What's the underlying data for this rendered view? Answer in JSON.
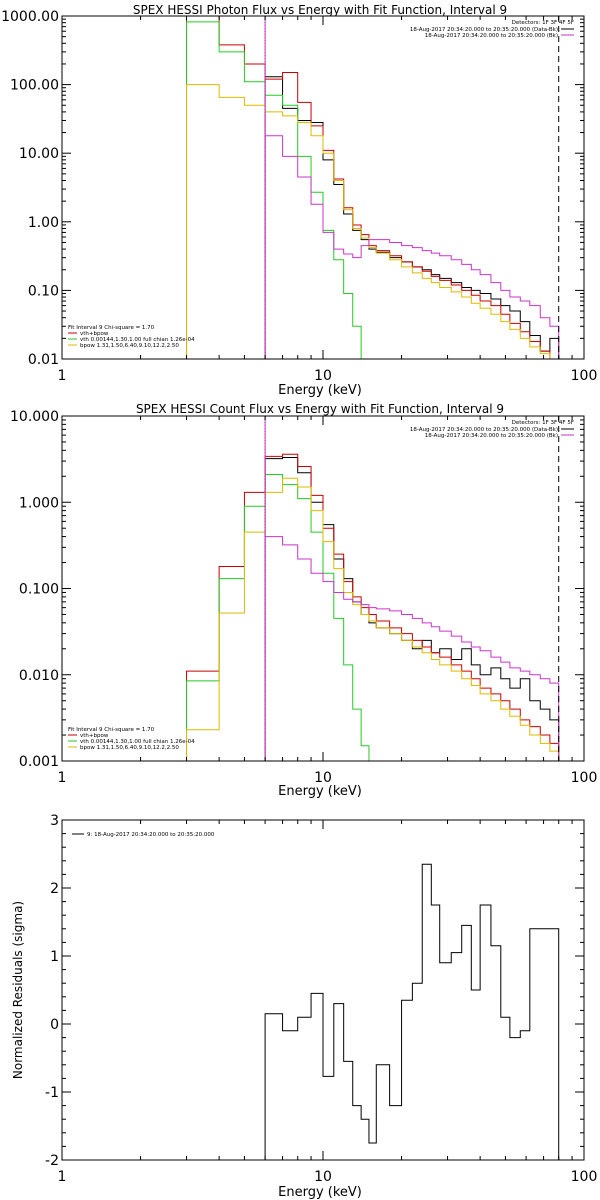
{
  "colors": {
    "data": "#000000",
    "total": "#cc0000",
    "vth": "#22cc22",
    "bpow": "#ddbb00",
    "background": "#cc33cc",
    "axes": "#000000"
  },
  "chart_data": [
    {
      "type": "line",
      "title": "SPEX HESSI Photon Flux vs Energy with Fit Function, Interval 9",
      "xlabel": "Energy (keV)",
      "ylabel": "",
      "xscale": "log",
      "yscale": "log",
      "xlim": [
        1,
        100
      ],
      "ylim": [
        0.01,
        1000
      ],
      "xticks": [
        1,
        10,
        100
      ],
      "xtick_labels": [
        "1",
        "10",
        "100"
      ],
      "yticks": [
        0.01,
        0.1,
        1,
        10,
        100,
        1000
      ],
      "ytick_labels": [
        "0.01",
        "0.10",
        "1.00",
        "10.00",
        "100.00",
        "1000.00"
      ],
      "vlines": [
        {
          "x": 6,
          "style": "dotted",
          "color": "#000000"
        },
        {
          "x": 6,
          "style": "solid",
          "color": "#cc33cc"
        },
        {
          "x": 80,
          "style": "dashed",
          "color": "#000000"
        }
      ],
      "legend_top": {
        "position": "top-right",
        "header": "Detectors: 1F 3F 4F 5F",
        "entries": [
          {
            "text": "18-Aug-2017 20:34:20.000 to 20:35:20.000 (Data-Bk)",
            "color": "#000000"
          },
          {
            "text": "18-Aug-2017 20:34:20.000 to 20:35:20.000 (Bk)",
            "color": "#cc33cc"
          }
        ]
      },
      "legend_bottom": {
        "position": "bottom-left",
        "header": "Fit Interval 9   Chi-square = 1.70",
        "entries": [
          {
            "text": "vth+bpow",
            "color": "#cc0000"
          },
          {
            "text": "vth 0.00144,1.30,1.00  full chian 1.26e-04",
            "color": "#22cc22"
          },
          {
            "text": "bpow 1.31,1.50,6.40,9.10,12.2,2.50",
            "color": "#ddbb00"
          }
        ]
      },
      "series": [
        {
          "color": "#000000",
          "edges": [
            6,
            7,
            8,
            9,
            10,
            11,
            12,
            13,
            14,
            15,
            16,
            18,
            20,
            22,
            24,
            26,
            28,
            31,
            34,
            37,
            40,
            44,
            48,
            52,
            57,
            62,
            68,
            74,
            80
          ],
          "values": [
            130,
            45,
            30,
            28,
            8,
            3.5,
            1.3,
            0.75,
            0.55,
            0.4,
            0.36,
            0.3,
            0.26,
            0.22,
            0.2,
            0.17,
            0.15,
            0.13,
            0.11,
            0.1,
            0.09,
            0.075,
            0.06,
            0.05,
            0.035,
            0.022,
            0.013,
            0.02
          ]
        },
        {
          "color": "#cc0000",
          "edges": [
            3,
            4,
            5,
            6,
            7,
            8,
            9,
            10,
            11,
            12,
            13,
            14,
            15,
            16,
            18,
            20,
            22,
            24,
            26,
            28,
            31,
            34,
            37,
            40,
            44,
            48,
            52,
            57,
            62,
            68,
            74,
            80
          ],
          "values": [
            1000,
            380,
            200,
            120,
            150,
            55,
            25,
            11,
            4.2,
            1.6,
            0.9,
            0.65,
            0.45,
            0.38,
            0.32,
            0.26,
            0.22,
            0.19,
            0.16,
            0.14,
            0.12,
            0.1,
            0.085,
            0.07,
            0.06,
            0.045,
            0.033,
            0.025,
            0.018,
            0.013,
            0.01
          ]
        },
        {
          "color": "#22cc22",
          "edges": [
            3,
            4,
            5,
            6,
            7,
            8,
            9,
            10,
            11,
            12,
            13,
            14,
            15
          ],
          "values": [
            820,
            300,
            110,
            70,
            50,
            9,
            2.7,
            0.75,
            0.28,
            0.09,
            0.03,
            0.01
          ]
        },
        {
          "color": "#ddbb00",
          "edges": [
            3,
            4,
            5,
            6,
            7,
            8,
            9,
            10,
            11,
            12,
            13,
            14,
            15,
            16,
            18,
            20,
            22,
            24,
            26,
            28,
            31,
            34,
            37,
            40,
            44,
            48,
            52,
            57,
            62,
            68,
            74,
            80
          ],
          "values": [
            100,
            65,
            50,
            40,
            35,
            28,
            18,
            10,
            4,
            1.5,
            0.8,
            0.58,
            0.42,
            0.35,
            0.28,
            0.22,
            0.18,
            0.15,
            0.13,
            0.11,
            0.095,
            0.08,
            0.065,
            0.055,
            0.045,
            0.035,
            0.027,
            0.02,
            0.015,
            0.012,
            0.01
          ]
        },
        {
          "color": "#cc33cc",
          "edges": [
            6,
            7,
            8,
            9,
            10,
            11,
            12,
            13,
            14,
            15,
            16,
            18,
            20,
            22,
            24,
            26,
            28,
            31,
            34,
            37,
            40,
            44,
            48,
            52,
            57,
            62,
            68,
            74,
            80
          ],
          "values": [
            18,
            9,
            4.5,
            1.8,
            0.7,
            0.4,
            0.34,
            0.3,
            0.45,
            0.55,
            0.55,
            0.5,
            0.45,
            0.42,
            0.38,
            0.35,
            0.32,
            0.28,
            0.24,
            0.2,
            0.17,
            0.13,
            0.1,
            0.08,
            0.07,
            0.06,
            0.04,
            0.03
          ]
        }
      ]
    },
    {
      "type": "line",
      "title": "SPEX HESSI Count Flux vs Energy with Fit Function, Interval 9",
      "xlabel": "Energy (keV)",
      "ylabel": "",
      "xscale": "log",
      "yscale": "log",
      "xlim": [
        1,
        100
      ],
      "ylim": [
        0.001,
        10
      ],
      "xticks": [
        1,
        10,
        100
      ],
      "xtick_labels": [
        "1",
        "10",
        "100"
      ],
      "yticks": [
        0.001,
        0.01,
        0.1,
        1,
        10
      ],
      "ytick_labels": [
        "0.001",
        "0.010",
        "0.100",
        "1.000",
        "10.000"
      ],
      "vlines": [
        {
          "x": 6,
          "style": "dotted",
          "color": "#000000"
        },
        {
          "x": 6,
          "style": "solid",
          "color": "#cc33cc"
        },
        {
          "x": 80,
          "style": "dashed",
          "color": "#000000"
        }
      ],
      "legend_top": {
        "position": "top-right",
        "header": "Detectors: 1F 3F 4F 5F",
        "entries": [
          {
            "text": "18-Aug-2017 20:34:20.000 to 20:35:20.000 (Data-Bk)",
            "color": "#000000"
          },
          {
            "text": "18-Aug-2017 20:34:20.000 to 20:35:20.000 (Bk)",
            "color": "#cc33cc"
          }
        ]
      },
      "legend_bottom": {
        "position": "bottom-left",
        "header": "Fit Interval 9   Chi-square = 1.70",
        "entries": [
          {
            "text": "vth+bpow",
            "color": "#cc0000"
          },
          {
            "text": "vth 0.00144,1.30,1.00  full chian 1.26e-04",
            "color": "#22cc22"
          },
          {
            "text": "bpow 1.31,1.50,6.40,9.10,12.2,2.50",
            "color": "#ddbb00"
          }
        ]
      },
      "series": [
        {
          "color": "#000000",
          "edges": [
            6,
            7,
            8,
            9,
            10,
            11,
            12,
            13,
            14,
            15,
            16,
            18,
            20,
            22,
            24,
            26,
            28,
            31,
            34,
            37,
            40,
            44,
            48,
            52,
            57,
            62,
            68,
            74,
            80
          ],
          "values": [
            3.2,
            3.3,
            2.2,
            1.0,
            0.55,
            0.22,
            0.13,
            0.07,
            0.05,
            0.04,
            0.035,
            0.03,
            0.025,
            0.02,
            0.025,
            0.018,
            0.02,
            0.015,
            0.02,
            0.013,
            0.01,
            0.012,
            0.009,
            0.007,
            0.009,
            0.005,
            0.004,
            0.003
          ]
        },
        {
          "color": "#cc0000",
          "edges": [
            3,
            4,
            5,
            6,
            7,
            8,
            9,
            10,
            11,
            12,
            13,
            14,
            15,
            16,
            18,
            20,
            22,
            24,
            26,
            28,
            31,
            34,
            37,
            40,
            44,
            48,
            52,
            57,
            62,
            68,
            74,
            80
          ],
          "values": [
            0.011,
            0.18,
            1.3,
            3.4,
            3.6,
            2.6,
            1.2,
            0.5,
            0.25,
            0.12,
            0.08,
            0.06,
            0.05,
            0.042,
            0.035,
            0.03,
            0.025,
            0.021,
            0.018,
            0.016,
            0.013,
            0.011,
            0.009,
            0.007,
            0.006,
            0.005,
            0.004,
            0.003,
            0.0025,
            0.002,
            0.0016
          ]
        },
        {
          "color": "#22cc22",
          "edges": [
            3,
            4,
            5,
            6,
            7,
            8,
            9,
            10,
            11,
            12,
            13,
            14,
            15,
            16
          ],
          "values": [
            0.0085,
            0.13,
            0.9,
            2.1,
            1.6,
            1.1,
            0.45,
            0.15,
            0.045,
            0.013,
            0.004,
            0.0015,
            0.001
          ]
        },
        {
          "color": "#ddbb00",
          "edges": [
            3,
            4,
            5,
            6,
            7,
            8,
            9,
            10,
            11,
            12,
            13,
            14,
            15,
            16,
            18,
            20,
            22,
            24,
            26,
            28,
            31,
            34,
            37,
            40,
            44,
            48,
            52,
            57,
            62,
            68,
            74,
            80,
            88
          ],
          "values": [
            0.0023,
            0.052,
            0.45,
            1.3,
            1.9,
            1.5,
            0.8,
            0.35,
            0.17,
            0.09,
            0.065,
            0.05,
            0.042,
            0.035,
            0.03,
            0.025,
            0.021,
            0.018,
            0.015,
            0.013,
            0.011,
            0.009,
            0.0075,
            0.006,
            0.005,
            0.004,
            0.0033,
            0.0026,
            0.002,
            0.0016,
            0.0013,
            0.001
          ]
        },
        {
          "color": "#cc33cc",
          "edges": [
            6,
            7,
            8,
            9,
            10,
            11,
            12,
            13,
            14,
            15,
            16,
            18,
            20,
            22,
            24,
            26,
            28,
            31,
            34,
            37,
            40,
            44,
            48,
            52,
            57,
            62,
            68,
            74,
            80
          ],
          "values": [
            0.4,
            0.32,
            0.22,
            0.15,
            0.12,
            0.09,
            0.075,
            0.07,
            0.065,
            0.06,
            0.058,
            0.055,
            0.05,
            0.045,
            0.04,
            0.036,
            0.032,
            0.028,
            0.024,
            0.021,
            0.019,
            0.016,
            0.014,
            0.012,
            0.011,
            0.01,
            0.009,
            0.008
          ]
        }
      ]
    },
    {
      "type": "line",
      "title": "",
      "xlabel": "Energy (keV)",
      "ylabel": "Normalized Residuals (sigma)",
      "xscale": "log",
      "yscale": "linear",
      "xlim": [
        1,
        100
      ],
      "ylim": [
        -2,
        3
      ],
      "xticks": [
        1,
        10,
        100
      ],
      "xtick_labels": [
        "1",
        "10",
        "100"
      ],
      "yticks": [
        -2,
        -1,
        0,
        1,
        2,
        3
      ],
      "ytick_labels": [
        "-2",
        "-1",
        "0",
        "1",
        "2",
        "3"
      ],
      "vlines": [],
      "legend_top": {
        "position": "top-left",
        "header": "",
        "entries": [
          {
            "text": "9: 18-Aug-2017 20:34:20.000 to 20:35:20.000",
            "color": "#000000"
          }
        ]
      },
      "series": [
        {
          "color": "#000000",
          "edges": [
            6,
            7,
            8,
            9,
            10,
            11,
            12,
            13,
            14,
            15,
            16,
            18,
            20,
            22,
            24,
            26,
            28,
            31,
            34,
            37,
            40,
            44,
            48,
            52,
            57,
            62,
            68,
            74,
            80
          ],
          "values": [
            0.15,
            -0.1,
            0.1,
            0.45,
            -0.77,
            0.3,
            -0.55,
            -1.2,
            -1.4,
            -1.75,
            -0.6,
            -1.2,
            0.35,
            0.6,
            2.35,
            1.75,
            0.9,
            1.05,
            1.45,
            0.5,
            1.75,
            1.15,
            0.1,
            -0.2,
            -0.1,
            1.4,
            1.4,
            1.4
          ]
        }
      ]
    }
  ]
}
